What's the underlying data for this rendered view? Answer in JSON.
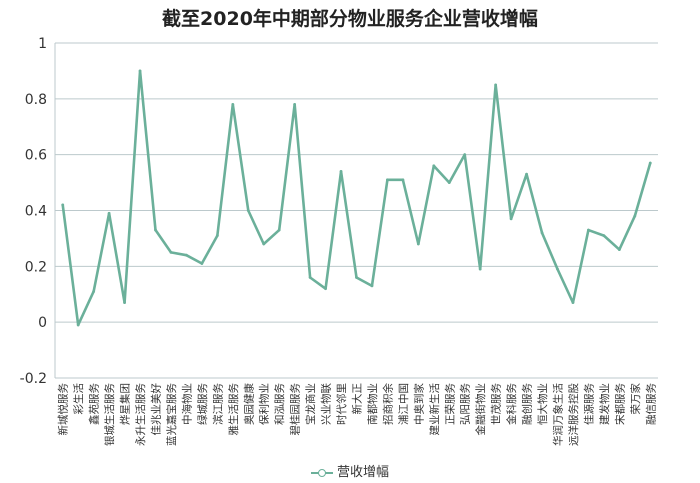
{
  "chart_data": {
    "type": "line",
    "title": "截至2020年中期部分物业服务企业营收增幅",
    "categories": [
      "新城悦服务",
      "彩生活",
      "鑫苑服务",
      "银城生活服务",
      "烨星集团",
      "永升生活服务",
      "佳兆业美好",
      "蓝光嘉宝服务",
      "中海物业",
      "绿城服务",
      "滨江服务",
      "雅生活服务",
      "奥园健康",
      "保利物业",
      "和泓服务",
      "碧桂园服务",
      "宝龙商业",
      "兴业物联",
      "时代邻里",
      "新大正",
      "南都物业",
      "招商积余",
      "浦江中国",
      "中奥到家",
      "建业新生活",
      "正荣服务",
      "弘阳服务",
      "金融街物业",
      "世茂服务",
      "金科服务",
      "融创服务",
      "恒大物业",
      "华润万象生活",
      "远洋服务控股",
      "佳源服务",
      "建发物业",
      "宋都服务",
      "荣万家",
      "融信服务"
    ],
    "series": [
      {
        "name": "营收增幅",
        "values": [
          0.42,
          -0.01,
          0.11,
          0.39,
          0.07,
          0.9,
          0.33,
          0.25,
          0.24,
          0.21,
          0.31,
          0.78,
          0.4,
          0.28,
          0.33,
          0.78,
          0.16,
          0.12,
          0.54,
          0.16,
          0.13,
          0.51,
          0.51,
          0.28,
          0.56,
          0.5,
          0.6,
          0.19,
          0.85,
          0.37,
          0.53,
          0.32,
          0.19,
          0.07,
          0.33,
          0.31,
          0.26,
          0.38,
          0.57
        ]
      }
    ],
    "ylim": [
      -0.2,
      1
    ],
    "yticks": [
      "-0.2",
      "0",
      "0.2",
      "0.4",
      "0.6",
      "0.8",
      "1"
    ],
    "grid": "horizontal",
    "legend": "bottom-center",
    "color": "#6bb09a"
  }
}
